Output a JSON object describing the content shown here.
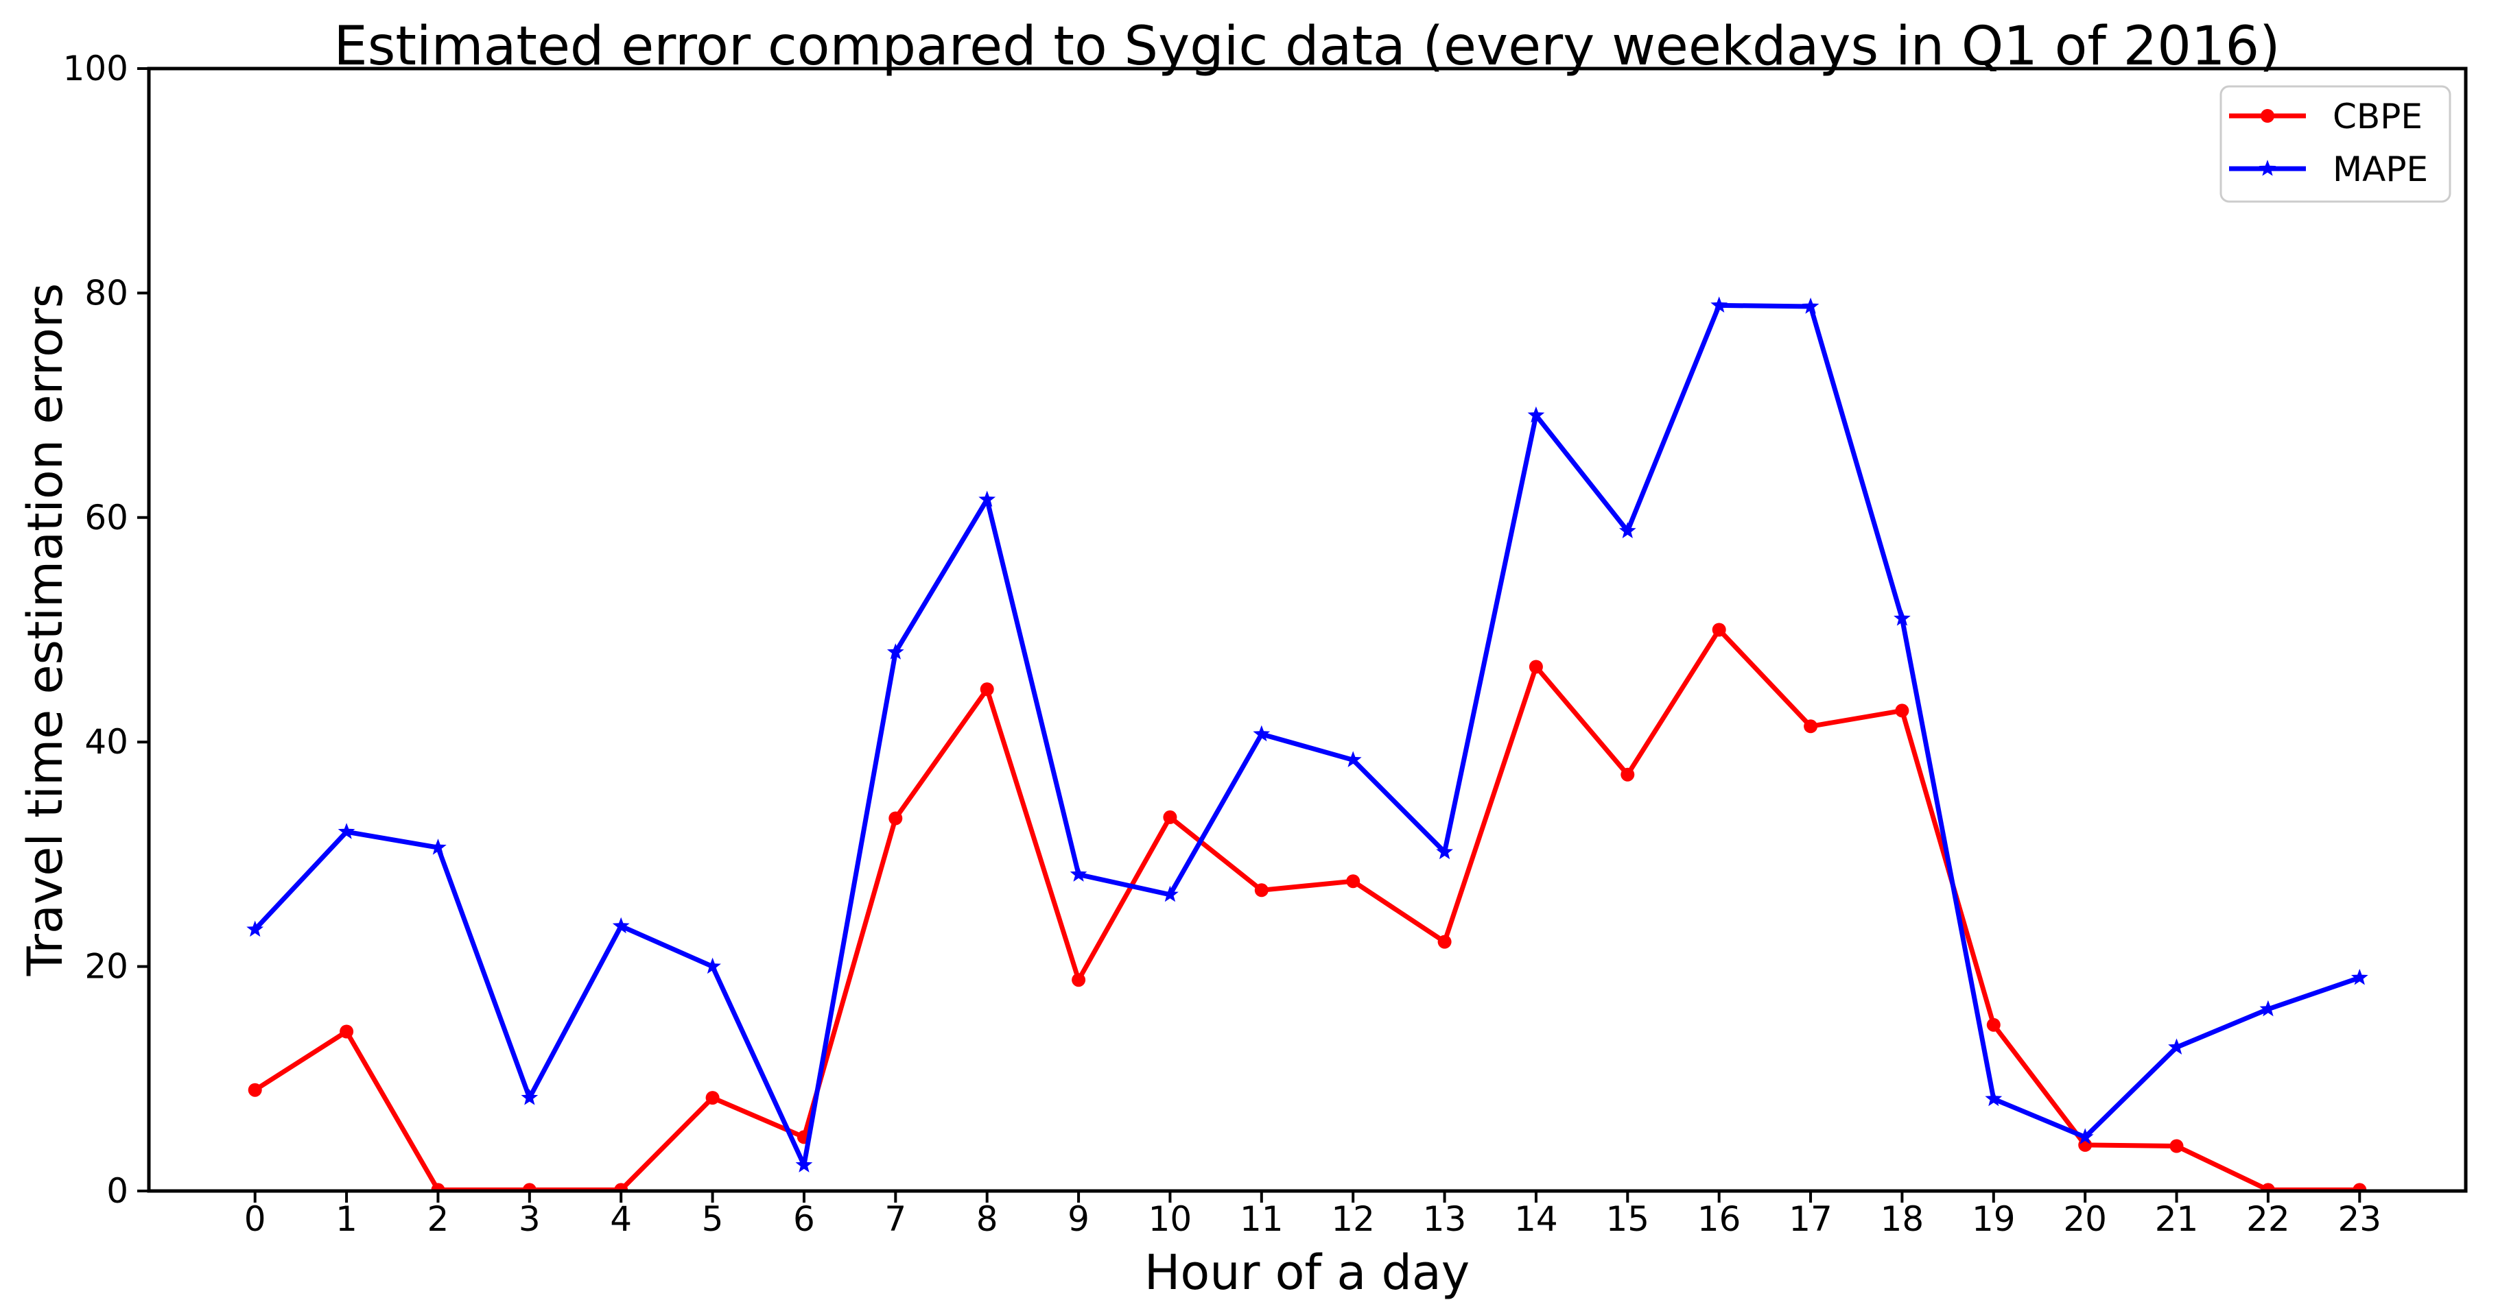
{
  "figure": {
    "background": "#ffffff",
    "text_color": "#000000"
  },
  "chart_data": {
    "type": "line",
    "title": "Estimated error compared to Sygic data (every weekdays in Q1 of 2016)",
    "xlabel": "Hour of a day",
    "ylabel": "Travel time estimation errors",
    "x": [
      0,
      1,
      2,
      3,
      4,
      5,
      6,
      7,
      8,
      9,
      10,
      11,
      12,
      13,
      14,
      15,
      16,
      17,
      18,
      19,
      20,
      21,
      22,
      23
    ],
    "series": [
      {
        "name": "CBPE",
        "color": "#ff0000",
        "marker": "circle",
        "values": [
          9.0,
          14.2,
          0.1,
          0.1,
          0.1,
          8.3,
          4.8,
          33.2,
          44.7,
          18.8,
          33.3,
          26.8,
          27.6,
          22.2,
          46.7,
          37.1,
          50.0,
          41.4,
          42.8,
          14.8,
          4.1,
          4.0,
          0.1,
          0.1
        ]
      },
      {
        "name": "MAPE",
        "color": "#0000ff",
        "marker": "star",
        "values": [
          23.3,
          32.0,
          30.6,
          8.3,
          23.6,
          20.0,
          2.3,
          48.0,
          61.6,
          28.2,
          26.4,
          40.7,
          38.4,
          30.2,
          69.1,
          58.8,
          78.9,
          78.8,
          51.0,
          8.2,
          4.8,
          12.8,
          16.2,
          19.0
        ]
      }
    ],
    "xlim": [
      -1.16,
      24.16
    ],
    "ylim": [
      0,
      100
    ],
    "yticks": [
      0,
      20,
      40,
      60,
      80,
      100
    ],
    "grid": false,
    "legend_position": "upper right",
    "axis_color": "#000000",
    "legend_border_color": "#cccccc",
    "legend_background": "#ffffff"
  }
}
